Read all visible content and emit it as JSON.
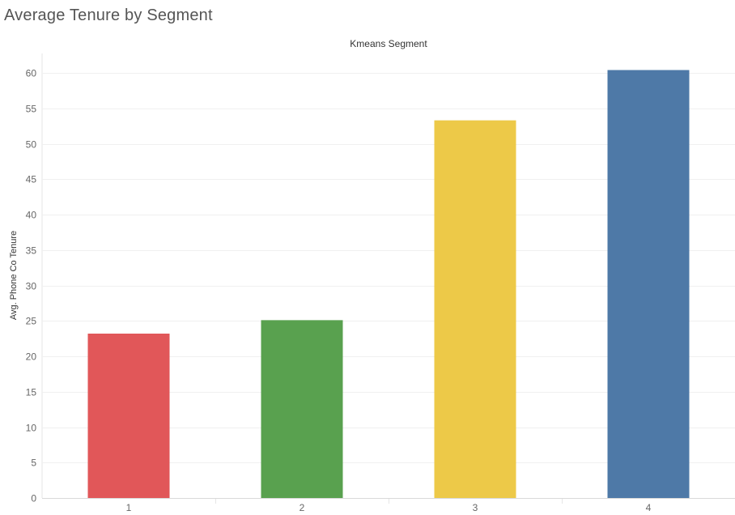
{
  "chart_data": {
    "type": "bar",
    "title": "Average Tenure by Segment",
    "column_header": "Kmeans Segment",
    "ylabel": "Avg. Phone Co Tenure",
    "categories": [
      "1",
      "2",
      "3",
      "4"
    ],
    "values": [
      23.2,
      25.1,
      53.3,
      60.4
    ],
    "colors": [
      "#e15759",
      "#59a14f",
      "#edc948",
      "#4e79a7"
    ],
    "ylim": [
      0,
      61
    ],
    "yticks": [
      0,
      5,
      10,
      15,
      20,
      25,
      30,
      35,
      40,
      45,
      50,
      55,
      60
    ],
    "grid": true,
    "legend": "none"
  }
}
